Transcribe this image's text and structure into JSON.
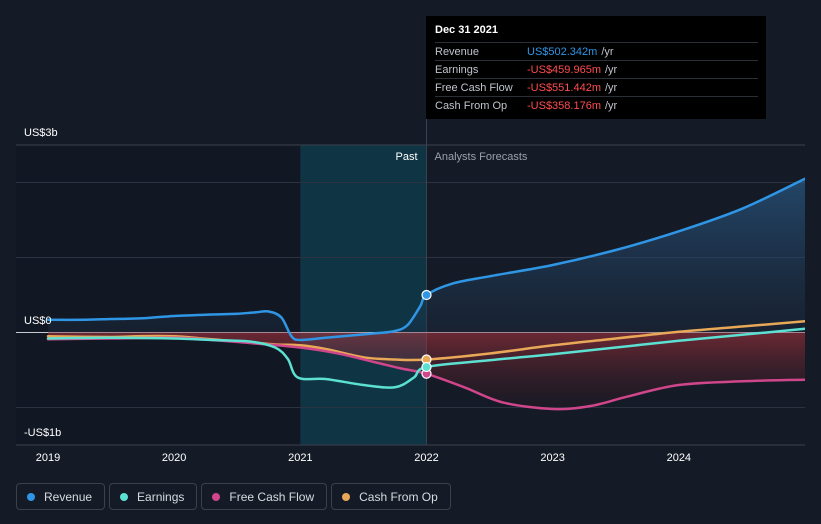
{
  "chart_data": {
    "type": "line",
    "x_ticks": [
      "2019",
      "2020",
      "2021",
      "2022",
      "2023",
      "2024"
    ],
    "y_labels": {
      "top": "US$3b",
      "zero": "US$0",
      "bottom": "-US$1b"
    },
    "ylim": [
      -1.5,
      2.5
    ],
    "past_label": "Past",
    "forecast_label": "Analysts Forecasts",
    "series": [
      {
        "name": "Revenue",
        "color": "#2f96e6",
        "points": [
          [
            2019,
            0.17
          ],
          [
            2019.3,
            0.17
          ],
          [
            2019.5,
            0.18
          ],
          [
            2019.75,
            0.19
          ],
          [
            2020,
            0.22
          ],
          [
            2020.3,
            0.24
          ],
          [
            2020.5,
            0.25
          ],
          [
            2020.65,
            0.27
          ],
          [
            2020.75,
            0.28
          ],
          [
            2020.85,
            0.2
          ],
          [
            2020.93,
            -0.05
          ],
          [
            2021,
            -0.1
          ],
          [
            2021.2,
            -0.07
          ],
          [
            2021.4,
            -0.04
          ],
          [
            2021.6,
            -0.01
          ],
          [
            2021.75,
            0.02
          ],
          [
            2021.85,
            0.1
          ],
          [
            2021.95,
            0.35
          ],
          [
            2022,
            0.5
          ],
          [
            2022.2,
            0.65
          ],
          [
            2022.5,
            0.75
          ],
          [
            2023,
            0.9
          ],
          [
            2023.5,
            1.1
          ],
          [
            2024,
            1.35
          ],
          [
            2024.5,
            1.65
          ],
          [
            2025,
            2.05
          ]
        ]
      },
      {
        "name": "Earnings",
        "color": "#5ce0d2",
        "points": [
          [
            2019,
            -0.08
          ],
          [
            2019.5,
            -0.07
          ],
          [
            2020,
            -0.08
          ],
          [
            2020.3,
            -0.1
          ],
          [
            2020.6,
            -0.12
          ],
          [
            2020.8,
            -0.2
          ],
          [
            2020.9,
            -0.35
          ],
          [
            2020.98,
            -0.6
          ],
          [
            2021.2,
            -0.62
          ],
          [
            2021.5,
            -0.7
          ],
          [
            2021.75,
            -0.73
          ],
          [
            2021.9,
            -0.6
          ],
          [
            2022,
            -0.46
          ],
          [
            2022.5,
            -0.37
          ],
          [
            2023,
            -0.29
          ],
          [
            2023.5,
            -0.2
          ],
          [
            2024,
            -0.11
          ],
          [
            2024.5,
            -0.03
          ],
          [
            2025,
            0.05
          ]
        ]
      },
      {
        "name": "Free Cash Flow",
        "color": "#d0468b",
        "points": [
          [
            2019,
            -0.09
          ],
          [
            2019.5,
            -0.08
          ],
          [
            2020,
            -0.07
          ],
          [
            2020.3,
            -0.1
          ],
          [
            2020.6,
            -0.14
          ],
          [
            2021,
            -0.2
          ],
          [
            2021.3,
            -0.28
          ],
          [
            2021.6,
            -0.4
          ],
          [
            2021.8,
            -0.48
          ],
          [
            2022,
            -0.55
          ],
          [
            2022.3,
            -0.73
          ],
          [
            2022.6,
            -0.93
          ],
          [
            2023,
            -1.02
          ],
          [
            2023.3,
            -0.98
          ],
          [
            2023.6,
            -0.85
          ],
          [
            2024,
            -0.7
          ],
          [
            2024.5,
            -0.65
          ],
          [
            2025,
            -0.63
          ]
        ]
      },
      {
        "name": "Cash From Op",
        "color": "#e8a857",
        "points": [
          [
            2019,
            -0.05
          ],
          [
            2019.5,
            -0.06
          ],
          [
            2019.7,
            -0.05
          ],
          [
            2020,
            -0.05
          ],
          [
            2020.3,
            -0.09
          ],
          [
            2020.6,
            -0.13
          ],
          [
            2020.8,
            -0.16
          ],
          [
            2021,
            -0.17
          ],
          [
            2021.2,
            -0.22
          ],
          [
            2021.5,
            -0.33
          ],
          [
            2021.75,
            -0.36
          ],
          [
            2022,
            -0.36
          ],
          [
            2022.5,
            -0.28
          ],
          [
            2023,
            -0.17
          ],
          [
            2023.5,
            -0.08
          ],
          [
            2024,
            0.01
          ],
          [
            2024.5,
            0.08
          ],
          [
            2025,
            0.15
          ]
        ]
      }
    ]
  },
  "tooltip": {
    "date": "Dec 31 2021",
    "rows": [
      {
        "label": "Revenue",
        "value": "US$502.342m",
        "unit": "/yr",
        "color": "#2f96e6"
      },
      {
        "label": "Earnings",
        "value": "-US$459.965m",
        "unit": "/yr",
        "color": "#ff4d4d"
      },
      {
        "label": "Free Cash Flow",
        "value": "-US$551.442m",
        "unit": "/yr",
        "color": "#ff4d4d"
      },
      {
        "label": "Cash From Op",
        "value": "-US$358.176m",
        "unit": "/yr",
        "color": "#ff4d4d"
      }
    ]
  },
  "legend": [
    {
      "label": "Revenue",
      "color": "#2f96e6"
    },
    {
      "label": "Earnings",
      "color": "#5ce0d2"
    },
    {
      "label": "Free Cash Flow",
      "color": "#d0468b"
    },
    {
      "label": "Cash From Op",
      "color": "#e8a857"
    }
  ]
}
